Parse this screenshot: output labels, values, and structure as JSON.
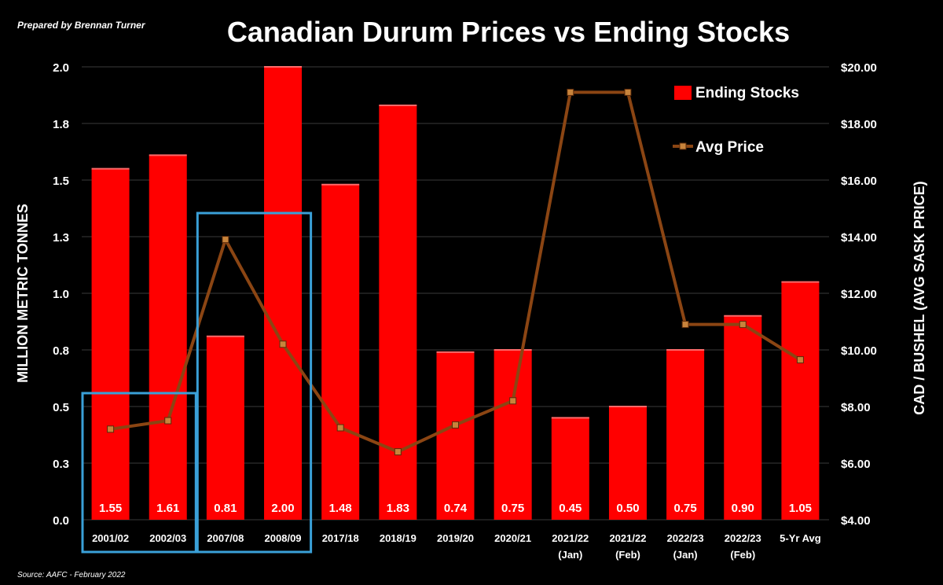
{
  "header": {
    "prepared_by": "Prepared by Brennan Turner",
    "title": "Canadian Durum Prices vs Ending Stocks"
  },
  "footer": {
    "source": "Source: AAFC - February 2022"
  },
  "colors": {
    "background": "#000000",
    "bar": "#ff0000",
    "price_line": "#8b4513",
    "highlight_box": "#3aa0d8",
    "text": "#ffffff"
  },
  "chart_data": {
    "type": "bar",
    "title": "Canadian Durum Prices vs Ending Stocks",
    "categories": [
      [
        "2001/02"
      ],
      [
        "2002/03"
      ],
      [
        "2007/08"
      ],
      [
        "2008/09"
      ],
      [
        "2017/18"
      ],
      [
        "2018/19"
      ],
      [
        "2019/20"
      ],
      [
        "2020/21"
      ],
      [
        "2021/22",
        "(Jan)"
      ],
      [
        "2021/22",
        "(Feb)"
      ],
      [
        "2022/23",
        "(Jan)"
      ],
      [
        "2022/23",
        "(Feb)"
      ],
      [
        "5-Yr Avg"
      ]
    ],
    "series": [
      {
        "name": "Ending Stocks",
        "type": "bar",
        "axis": "left",
        "color": "#ff0000",
        "values": [
          1.55,
          1.61,
          0.81,
          2.0,
          1.48,
          1.83,
          0.74,
          0.75,
          0.45,
          0.5,
          0.75,
          0.9,
          1.05
        ],
        "data_labels": [
          "1.55",
          "1.61",
          "0.81",
          "2.00",
          "1.48",
          "1.83",
          "0.74",
          "0.75",
          "0.45",
          "0.50",
          "0.75",
          "0.90",
          "1.05"
        ]
      },
      {
        "name": "Avg Price",
        "type": "line",
        "axis": "right",
        "color": "#8b4513",
        "values": [
          7.2,
          7.5,
          13.9,
          10.2,
          7.25,
          6.4,
          7.35,
          8.2,
          19.1,
          19.1,
          10.9,
          10.9,
          9.65
        ]
      }
    ],
    "y_left": {
      "label": "MILLION METRIC TONNES",
      "range": [
        0,
        2.0
      ],
      "ticks": [
        0,
        0.25,
        0.5,
        0.75,
        1.0,
        1.25,
        1.5,
        1.75,
        2.0
      ],
      "tick_labels": [
        "0.0",
        "0.3",
        "0.5",
        "0.8",
        "1.0",
        "1.3",
        "1.5",
        "1.8",
        "2.0"
      ]
    },
    "y_right": {
      "label": "CAD / BUSHEL (AVG SASK PRICE)",
      "range": [
        4,
        20
      ],
      "ticks": [
        4,
        6,
        8,
        10,
        12,
        14,
        16,
        18,
        20
      ],
      "tick_labels": [
        "$4.00",
        "$6.00",
        "$8.00",
        "$10.00",
        "$12.00",
        "$14.00",
        "$16.00",
        "$18.00",
        "$20.00"
      ]
    },
    "grid": true,
    "legend": {
      "position": "top-right"
    },
    "highlight_groups": [
      [
        0,
        1
      ],
      [
        2,
        3
      ]
    ]
  }
}
